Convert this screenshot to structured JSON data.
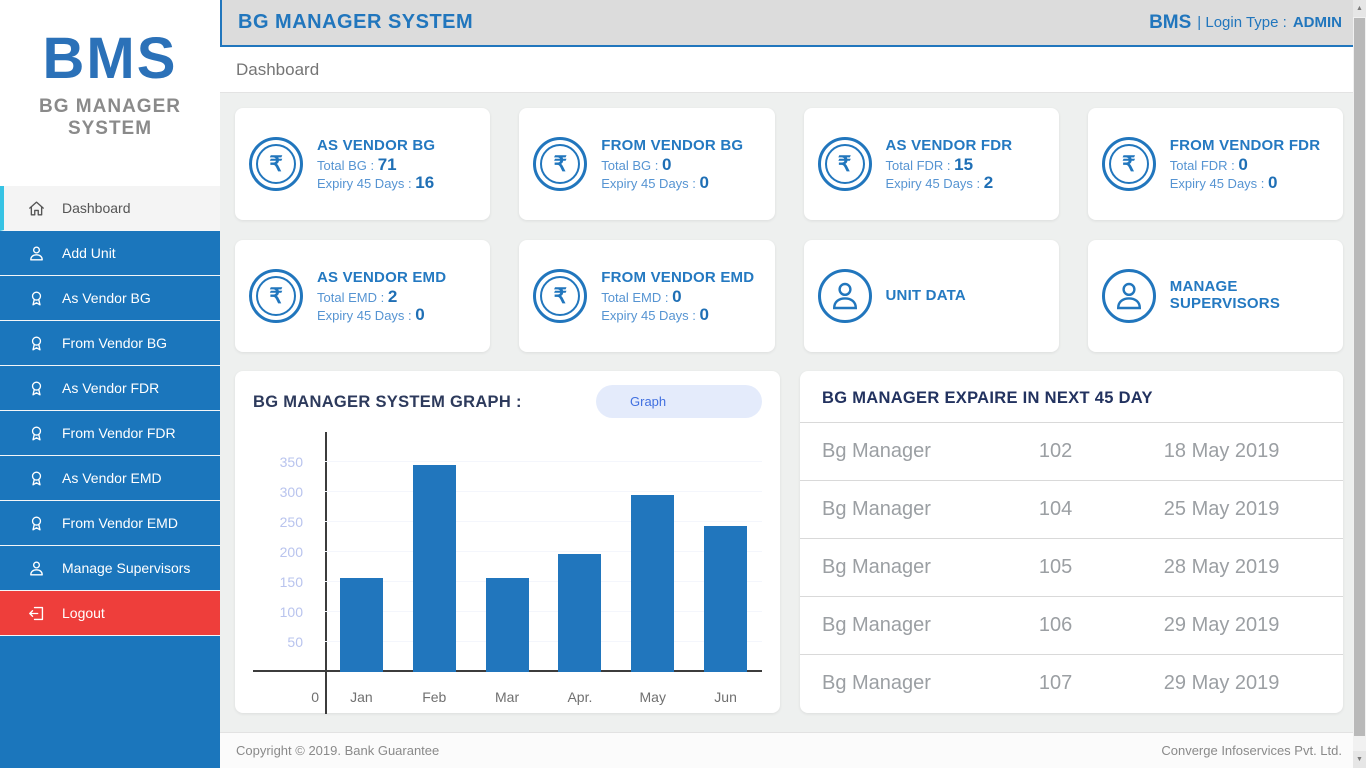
{
  "header": {
    "title": "BG MANAGER SYSTEM",
    "brand": "BMS",
    "login_type_label": "| Login Type :",
    "login_type_value": "ADMIN"
  },
  "breadcrumb": "Dashboard",
  "sidebar": {
    "logo_title": "BMS",
    "logo_subtitle": "BG MANAGER\nSYSTEM",
    "items": [
      {
        "label": "Dashboard",
        "icon": "home",
        "active": true
      },
      {
        "label": "Add Unit",
        "icon": "person"
      },
      {
        "label": "As Vendor BG",
        "icon": "award"
      },
      {
        "label": "From Vendor BG",
        "icon": "award"
      },
      {
        "label": "As Vendor FDR",
        "icon": "award"
      },
      {
        "label": "From Vendor FDR",
        "icon": "award"
      },
      {
        "label": "As Vendor EMD",
        "icon": "award"
      },
      {
        "label": "From Vendor EMD",
        "icon": "award"
      },
      {
        "label": "Manage Supervisors",
        "icon": "person"
      },
      {
        "label": "Logout",
        "icon": "logout",
        "danger": true
      }
    ]
  },
  "cards": [
    {
      "icon": "rupee",
      "title": "AS VENDOR BG",
      "lines": [
        {
          "label": "Total BG :",
          "value": "71"
        },
        {
          "label": "Expiry 45 Days :",
          "value": "16"
        }
      ]
    },
    {
      "icon": "rupee",
      "title": "FROM VENDOR BG",
      "lines": [
        {
          "label": "Total BG :",
          "value": "0"
        },
        {
          "label": "Expiry 45 Days :",
          "value": "0"
        }
      ]
    },
    {
      "icon": "rupee",
      "title": "AS VENDOR FDR",
      "lines": [
        {
          "label": "Total FDR :",
          "value": "15"
        },
        {
          "label": "Expiry 45 Days :",
          "value": "2"
        }
      ]
    },
    {
      "icon": "rupee",
      "title": "FROM VENDOR FDR",
      "lines": [
        {
          "label": "Total FDR :",
          "value": "0"
        },
        {
          "label": "Expiry 45 Days :",
          "value": "0"
        }
      ]
    },
    {
      "icon": "rupee",
      "title": "AS VENDOR EMD",
      "lines": [
        {
          "label": "Total EMD :",
          "value": "2"
        },
        {
          "label": "Expiry 45 Days :",
          "value": "0"
        }
      ]
    },
    {
      "icon": "rupee",
      "title": "FROM VENDOR EMD",
      "lines": [
        {
          "label": "Total EMD :",
          "value": "0"
        },
        {
          "label": "Expiry 45 Days :",
          "value": "0"
        }
      ]
    },
    {
      "icon": "person",
      "title": "UNIT DATA",
      "lines": []
    },
    {
      "icon": "person",
      "title": "MANAGE SUPERVISORS",
      "lines": []
    }
  ],
  "chart": {
    "title": "BG MANAGER SYSTEM GRAPH :",
    "button_label": "Graph"
  },
  "chart_data": {
    "type": "bar",
    "title": "BG MANAGER SYSTEM GRAPH :",
    "categories": [
      "Jan",
      "Feb",
      "Mar",
      "Apr.",
      "May",
      "Jun"
    ],
    "values": [
      157,
      345,
      157,
      197,
      295,
      243
    ],
    "xlabel": "",
    "ylabel": "",
    "ylim": [
      0,
      400
    ],
    "yticks": [
      50,
      100,
      150,
      200,
      250,
      300,
      350
    ],
    "origin_label": "0",
    "grid": true,
    "legend": false,
    "bar_color": "#2176bd"
  },
  "expiry_table": {
    "title": "BG MANAGER  EXPAIRE IN NEXT 45 DAY",
    "rows": [
      {
        "name": "Bg Manager",
        "number": "102",
        "date": "18 May 2019"
      },
      {
        "name": "Bg Manager",
        "number": "104",
        "date": "25 May 2019"
      },
      {
        "name": "Bg Manager",
        "number": "105",
        "date": "28 May 2019"
      },
      {
        "name": "Bg Manager",
        "number": "106",
        "date": "29 May 2019"
      },
      {
        "name": "Bg Manager",
        "number": "107",
        "date": "29 May 2019"
      }
    ]
  },
  "footer": {
    "left": "Copyright © 2019. Bank Guarantee",
    "right": "Converge Infoservices Pvt. Ltd."
  },
  "colors": {
    "sidebar_blue": "#1b76bc",
    "accent_blue": "#2176bd",
    "active_cyan": "#36c3e4",
    "logout_red": "#ee3e3b",
    "header_gray": "#dcdcdc",
    "navy_heading": "#2d3a5c",
    "ytick_color": "#b9c4ee",
    "table_text": "#9b9fa3"
  }
}
